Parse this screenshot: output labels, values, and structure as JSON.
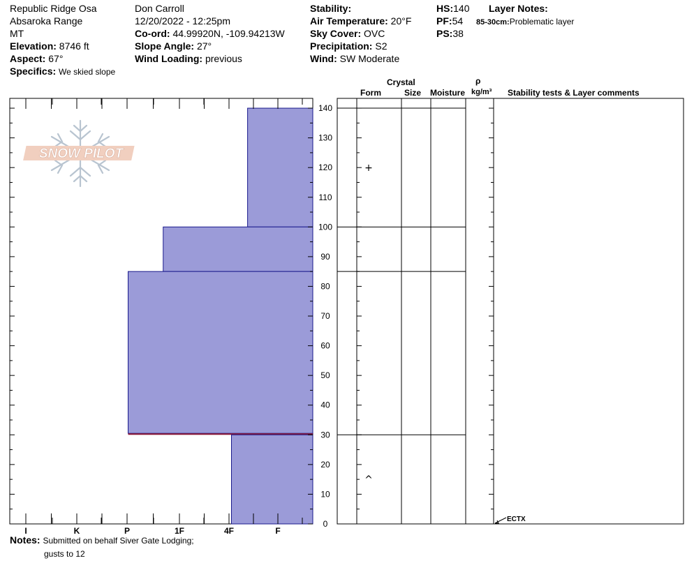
{
  "header": {
    "location_name": "Republic Ridge Osa",
    "range": "Absaroka Range",
    "state": "MT",
    "elevation_label": "Elevation:",
    "elevation_value": "8746 ft",
    "aspect_label": "Aspect:",
    "aspect_value": "67°",
    "specifics_label": "Specifics:",
    "specifics_value": "We skied slope",
    "observer": "Don Carroll",
    "datetime": "12/20/2022 - 12:25pm",
    "coord_label": "Co-ord:",
    "coord_value": "44.99920N, -109.94213W",
    "slope_label": "Slope Angle:",
    "slope_value": "27°",
    "wind_loading_label": "Wind Loading:",
    "wind_loading_value": "previous",
    "stability_label": "Stability:",
    "stability_value": "",
    "air_temp_label": "Air Temperature:",
    "air_temp_value": "20°F",
    "sky_label": "Sky Cover:",
    "sky_value": "OVC",
    "precip_label": "Precipitation:",
    "precip_value": "S2",
    "wind_label": "Wind:",
    "wind_value": "SW Moderate",
    "hs_label": "HS:",
    "hs_value": "140",
    "pf_label": "PF:",
    "pf_value": "54",
    "ps_label": "PS:",
    "ps_value": "38",
    "layer_notes_label": "Layer Notes:",
    "layer_note_range": "85-30cm:",
    "layer_note_text": "Problematic layer"
  },
  "logo": {
    "text": "SNOW PILOT"
  },
  "columns": {
    "crystal": "Crystal",
    "form": "Form",
    "size": "Size",
    "moisture": "Moisture",
    "rho": "ρ",
    "density_unit": "kg/m³",
    "stability_comments": "Stability tests & Layer comments"
  },
  "notes": {
    "label": "Notes:",
    "line1": "Submitted on behalf Siver Gate Lodging;",
    "line2": "gusts to 12"
  },
  "chart_data": {
    "type": "bar",
    "title": "",
    "hardness_scale": [
      "I",
      "K",
      "P",
      "1F",
      "4F",
      "F"
    ],
    "y_axis": {
      "ylim": [
        0,
        140
      ],
      "ticks": [
        0,
        10,
        20,
        30,
        40,
        50,
        60,
        70,
        80,
        90,
        100,
        110,
        120,
        130,
        140
      ]
    },
    "layers": [
      {
        "top": 140,
        "bottom": 100,
        "hardness_index": 0.62
      },
      {
        "top": 100,
        "bottom": 85,
        "hardness_index": 2.31
      },
      {
        "top": 85,
        "bottom": 30.5,
        "hardness_index": 2.98
      },
      {
        "top": 30.5,
        "bottom": 30,
        "hardness_index": 2.98,
        "problematic": true
      },
      {
        "top": 30,
        "bottom": 0,
        "hardness_index": 0.95
      }
    ],
    "grain_forms": [
      {
        "depth": 120,
        "symbol": "+"
      },
      {
        "depth": 15,
        "symbol": "^"
      }
    ],
    "layer_boundaries": [
      140,
      100,
      85,
      30
    ],
    "stability_tests": [
      {
        "depth": 0,
        "label": "ECTX"
      }
    ],
    "colors": {
      "layer_fill": "#9b9bd8",
      "layer_edge": "#1a1a8c",
      "problem_line": "#8b1a3a"
    }
  }
}
